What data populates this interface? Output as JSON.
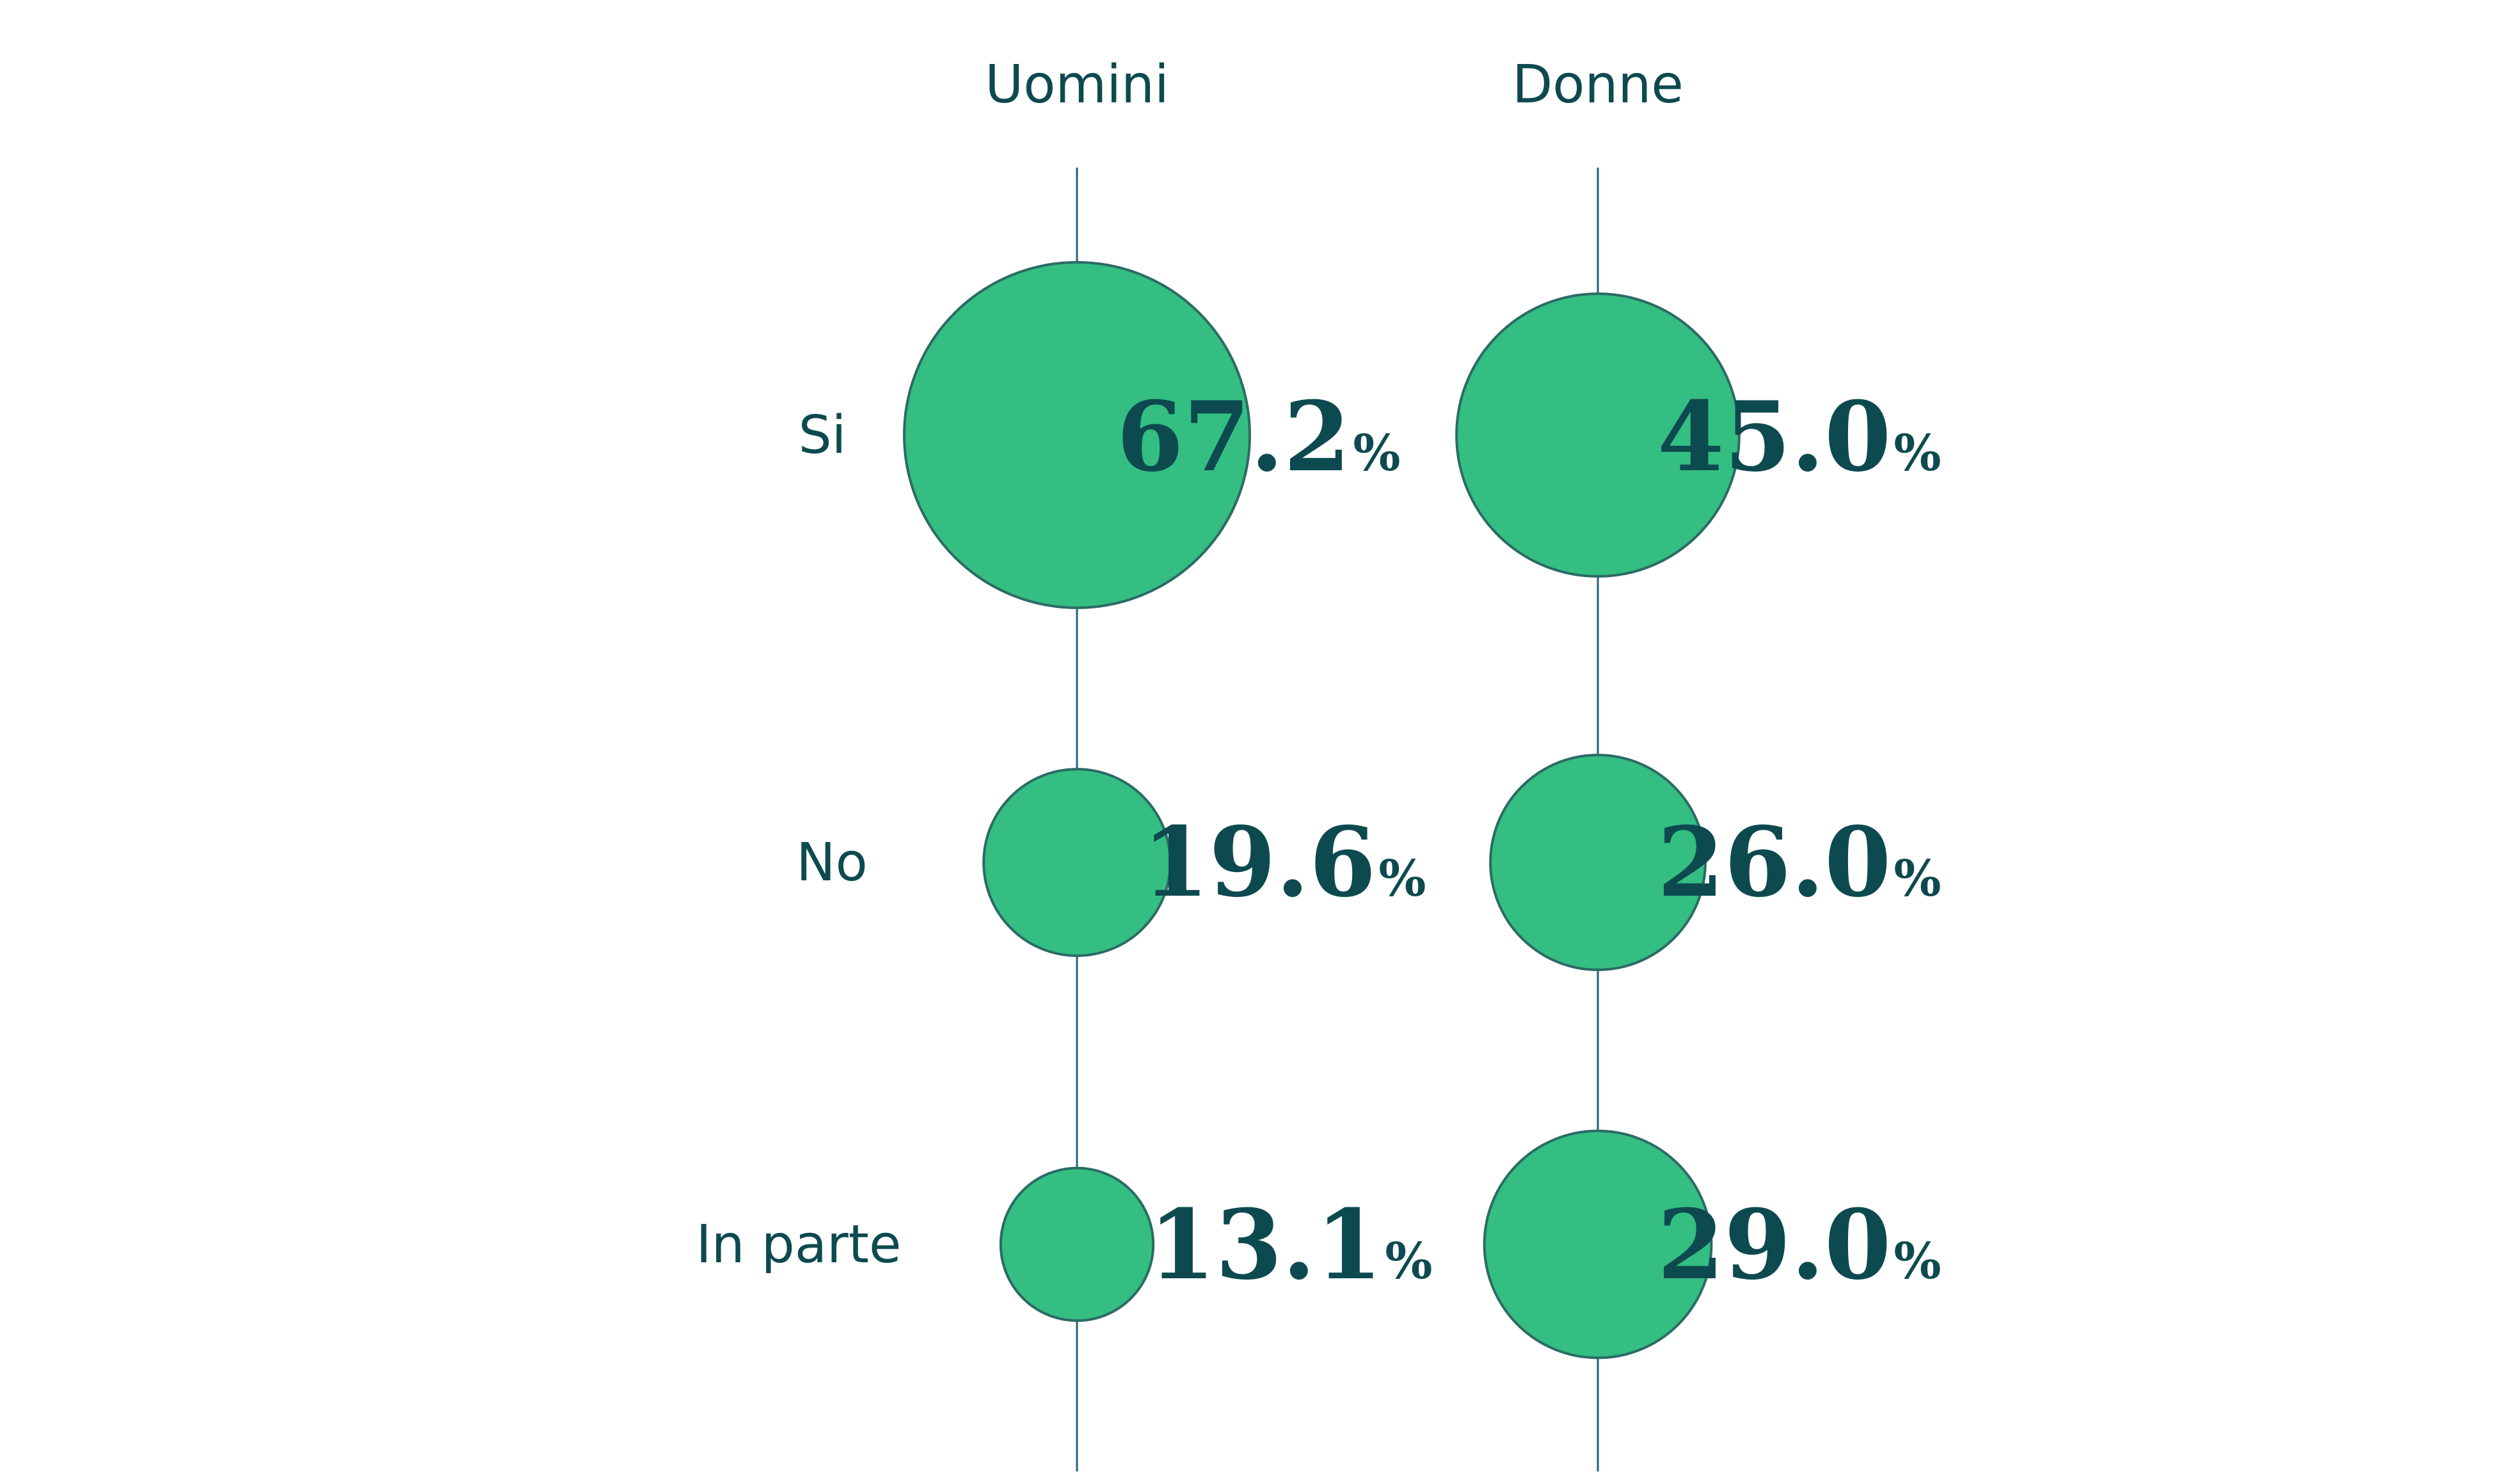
{
  "chart_data": {
    "type": "bubble",
    "columns": [
      "Uomini",
      "Donne"
    ],
    "rows": [
      "Si",
      "No",
      "In parte"
    ],
    "unit": "%",
    "series": [
      {
        "name": "Uomini",
        "values": [
          67.2,
          19.6,
          13.1
        ]
      },
      {
        "name": "Donne",
        "values": [
          45.0,
          26.0,
          29.0
        ]
      }
    ],
    "value_labels": [
      [
        "67.2",
        "19.6",
        "13.1"
      ],
      [
        "45.0",
        "26.0",
        "29.0"
      ]
    ],
    "colors": {
      "bubble_fill": "#34be82",
      "bubble_stroke": "#2b6b66",
      "text": "#0d4a4f",
      "axis_line": "#23627a"
    }
  }
}
